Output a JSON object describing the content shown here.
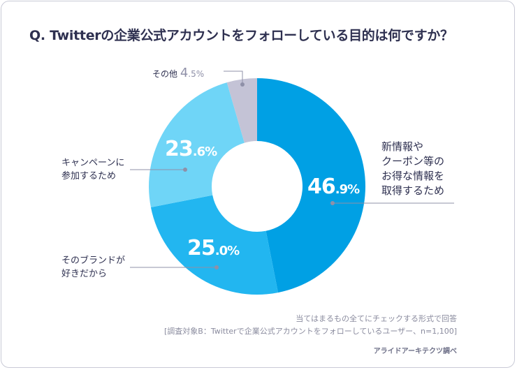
{
  "chart_data": {
    "type": "pie",
    "donut": true,
    "title": "Q. Twitterの企業公式アカウントをフォローしている目的は何ですか？",
    "start": "top",
    "direction": "clockwise",
    "slices": [
      {
        "label": "新情報やクーポン等のお得な情報を取得するため",
        "value": 46.9,
        "int": "46",
        "dec": ".9%",
        "color": "#00a0e4"
      },
      {
        "label": "そのブランドが好きだから",
        "value": 25.0,
        "int": "25",
        "dec": ".0%",
        "color": "#22b6f0"
      },
      {
        "label": "キャンペーンに参加するため",
        "value": 23.6,
        "int": "23",
        "dec": ".6%",
        "color": "#6fd5f7"
      },
      {
        "label": "その他",
        "value": 4.5,
        "int": "4",
        "dec": ".5%",
        "color": "#c4c3d6"
      }
    ],
    "labels_lines": {
      "s0": [
        "新情報や",
        "クーポン等の",
        "お得な情報を",
        "取得するため"
      ],
      "s1": [
        "そのブランドが",
        "好きだから"
      ],
      "s2": [
        "キャンペーンに",
        "参加するため"
      ]
    }
  },
  "notes": {
    "line1": "当てはまるもの全てにチェックする形式で回答",
    "line2": "[調査対象B：Twitterで企業公式アカウントをフォローしているユーザー、n=1,100]",
    "source": "アライドアーキテクツ調べ"
  }
}
